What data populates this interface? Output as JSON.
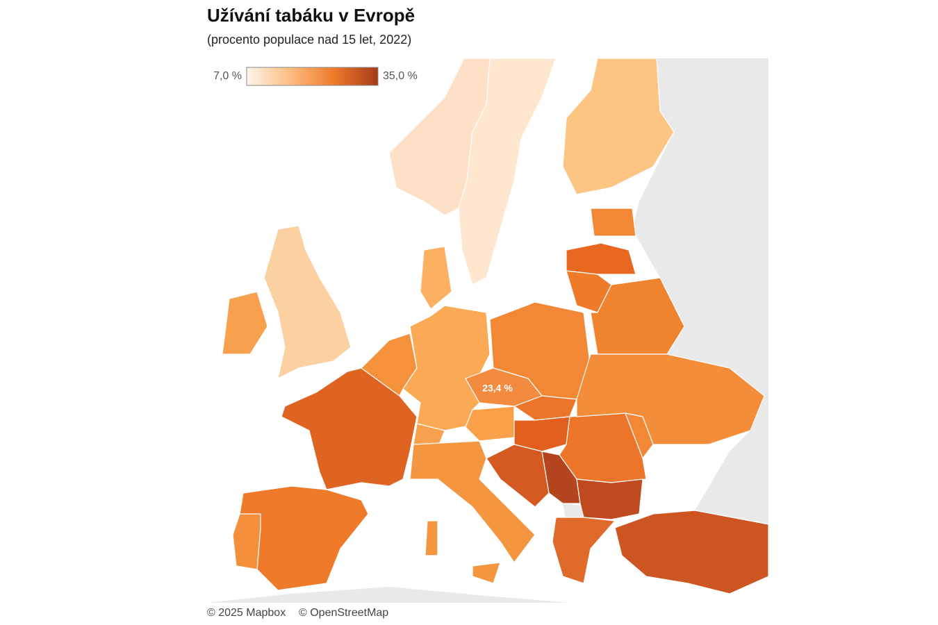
{
  "header": {
    "title": "Užívání tabáku v Evropě",
    "subtitle": "(procento populace nad 15 let, 2022)"
  },
  "legend": {
    "min": {
      "value": 7,
      "label": "7,0 %"
    },
    "max": {
      "value": 35,
      "label": "35,0 %"
    },
    "colors": [
      "#fff5eb",
      "#fdbd80",
      "#ee7a2a",
      "#a63a18"
    ]
  },
  "map": {
    "labels": [
      {
        "value": 23.4,
        "label": "23,4 %"
      }
    ]
  },
  "attribution": [
    "© 2025 Mapbox",
    "© OpenStreetMap"
  ]
}
